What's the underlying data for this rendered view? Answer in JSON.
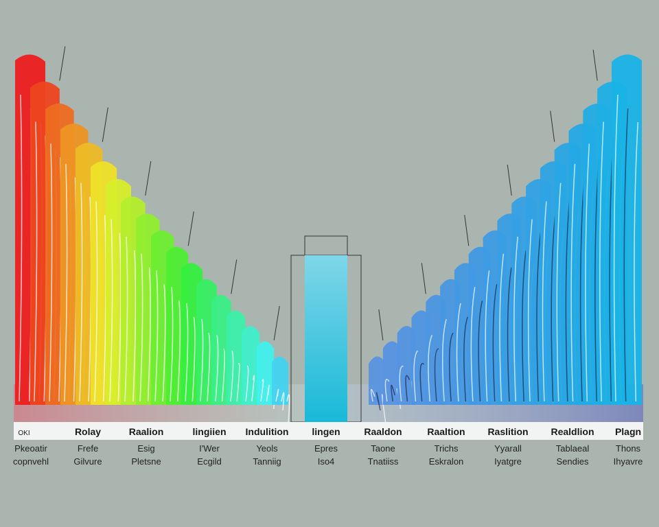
{
  "columns": [
    {
      "label": "OKI",
      "lines": [
        "Pkeoatir",
        "copnvehl"
      ]
    },
    {
      "label": "Rolay",
      "lines": [
        "Frefe",
        "Gilvure"
      ]
    },
    {
      "label": "Raalion",
      "lines": [
        "Esig",
        "Pletsne"
      ]
    },
    {
      "label": "lingiien",
      "lines": [
        "I'Wer",
        "Ecgild"
      ]
    },
    {
      "label": "Indulition",
      "lines": [
        "Yeols",
        "Tanniig"
      ]
    },
    {
      "label": "lingen",
      "lines": [
        "Epres",
        "Iso4"
      ]
    },
    {
      "label": "Raaldon",
      "lines": [
        "Taone",
        "Tnatiiss"
      ]
    },
    {
      "label": "Raaltion",
      "lines": [
        "Trichs",
        "Eskralon"
      ]
    },
    {
      "label": "Raslition",
      "lines": [
        "Yyarall",
        "Iyatgre"
      ]
    },
    {
      "label": "Realdlion",
      "lines": [
        "Tablaeal",
        "Sendies"
      ]
    },
    {
      "label": "Plagn",
      "lines": [
        "Thons",
        "Ihyavre"
      ]
    }
  ]
}
